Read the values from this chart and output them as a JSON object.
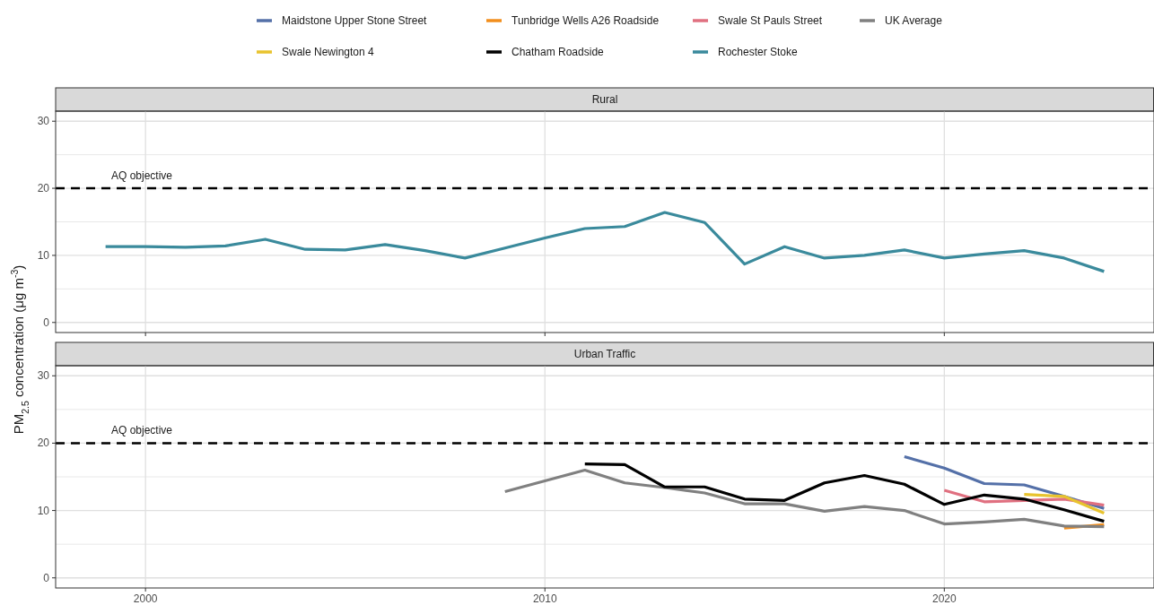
{
  "chart_data": [
    {
      "type": "line",
      "title": "Rural",
      "ylabel": "PM$_{2.5}$ concentration (μg m$^{-3}$)",
      "xlim": [
        1997.75,
        2025.25
      ],
      "xticks": [
        2000,
        2010,
        2020
      ],
      "ylim": [
        -1.5,
        31.5
      ],
      "yticks": [
        0,
        {
          "value": 5,
          "label": null
        },
        10,
        {
          "value": 15,
          "label": null
        },
        20,
        {
          "value": 25,
          "label": null
        },
        30
      ],
      "tick_labels": "y",
      "grid": true,
      "legend": "top",
      "line_style": "solid",
      "marker": "none",
      "ref_lines": [
        {
          "axis": "y",
          "value": 20,
          "label": "AQ objective",
          "color": "#000000",
          "line_style": "dashed"
        }
      ],
      "series": [
        {
          "name": "Rochester Stoke",
          "color": "#3a8a9c",
          "x": [
            1999,
            2000,
            2001,
            2002,
            2003,
            2004,
            2005,
            2006,
            2007,
            2008,
            2009,
            2010,
            2011,
            2012,
            2013,
            2014,
            2015,
            2016,
            2017,
            2018,
            2019,
            2020,
            2021,
            2022,
            2023,
            2024
          ],
          "values": [
            11.3,
            11.3,
            11.2,
            11.4,
            12.4,
            10.9,
            10.8,
            11.6,
            10.7,
            9.6,
            11.1,
            12.6,
            14.0,
            14.3,
            16.4,
            14.9,
            8.7,
            11.3,
            9.6,
            10.0,
            10.8,
            9.6,
            10.2,
            10.7,
            9.6,
            7.6
          ]
        }
      ]
    },
    {
      "type": "line",
      "title": "Urban Traffic",
      "xlim": [
        1997.75,
        2025.25
      ],
      "xticks": [
        2000,
        2010,
        2020
      ],
      "ylim": [
        -1.5,
        31.5
      ],
      "yticks": [
        0,
        {
          "value": 5,
          "label": null
        },
        10,
        {
          "value": 15,
          "label": null
        },
        20,
        {
          "value": 25,
          "label": null
        },
        30
      ],
      "grid": true,
      "legend": "top",
      "line_style": "solid",
      "marker": "none",
      "ref_lines": [
        {
          "axis": "y",
          "value": 20,
          "label": "AQ objective",
          "color": "#000000",
          "line_style": "dashed"
        }
      ],
      "series": [
        {
          "name": "Maidstone Upper Stone Street",
          "color": "#5470a8",
          "x": [
            2019,
            2020,
            2021,
            2022,
            2023,
            2024
          ],
          "values": [
            18.0,
            16.3,
            14.0,
            13.8,
            12.1,
            10.3
          ]
        },
        {
          "name": "Tunbridge Wells A26 Roadside",
          "color": "#f28e1c",
          "x": [
            2023,
            2024
          ],
          "values": [
            7.4,
            7.9
          ]
        },
        {
          "name": "Swale St Pauls Street",
          "color": "#e07080",
          "x": [
            2020,
            2021,
            2022,
            2023,
            2024
          ],
          "values": [
            13.0,
            11.3,
            11.5,
            11.7,
            10.8
          ]
        },
        {
          "name": "UK Average",
          "color": "#808080",
          "x": [
            2009,
            2010,
            2011,
            2012,
            2013,
            2014,
            2015,
            2016,
            2017,
            2018,
            2019,
            2020,
            2021,
            2022,
            2023,
            2024
          ],
          "values": [
            12.8,
            14.4,
            16.0,
            14.1,
            13.4,
            12.6,
            11.0,
            11.0,
            9.9,
            10.6,
            10.0,
            8.0,
            8.3,
            8.7,
            7.7,
            7.6
          ]
        },
        {
          "name": "Swale Newington 4",
          "color": "#e8c32e",
          "x": [
            2022,
            2023,
            2024
          ],
          "values": [
            12.4,
            12.1,
            9.6
          ]
        },
        {
          "name": "Chatham Roadside",
          "color": "#000000",
          "x": [
            2011,
            2012,
            2013,
            2014,
            2015,
            2016,
            2017,
            2018,
            2019,
            2020,
            2021,
            2022,
            2023,
            2024
          ],
          "values": [
            16.9,
            16.8,
            13.5,
            13.5,
            11.7,
            11.5,
            14.1,
            15.2,
            13.9,
            10.9,
            12.3,
            11.7,
            10.1,
            8.4
          ]
        }
      ]
    }
  ]
}
